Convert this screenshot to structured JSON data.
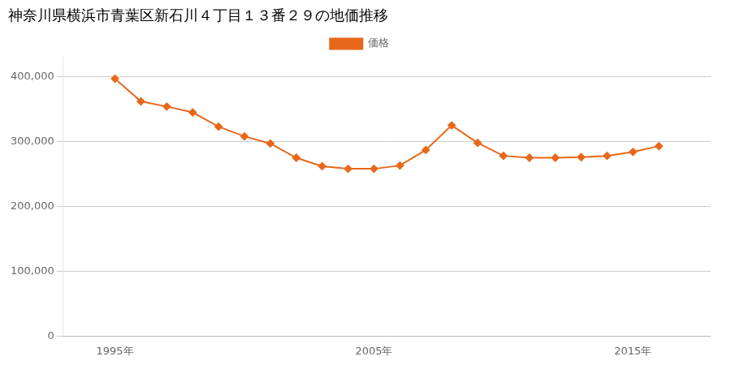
{
  "chart_data": {
    "type": "line",
    "title": "神奈川県横浜市青葉区新石川４丁目１３番２９の地価推移",
    "x": [
      1995,
      1996,
      1997,
      1998,
      1999,
      2000,
      2001,
      2002,
      2003,
      2004,
      2005,
      2006,
      2007,
      2008,
      2009,
      2010,
      2011,
      2012,
      2013,
      2014,
      2015,
      2016
    ],
    "series": [
      {
        "name": "価格",
        "color": "#e8681a",
        "marker": "diamond",
        "line_style": "solid",
        "values": [
          397000,
          362000,
          354000,
          345000,
          323000,
          308000,
          297000,
          275000,
          262000,
          258000,
          258000,
          263000,
          287000,
          325000,
          298000,
          278000,
          275000,
          275000,
          276000,
          278000,
          284000,
          293000
        ]
      }
    ],
    "xlim": [
      1993,
      2018
    ],
    "xticks": [
      {
        "value": 1995,
        "label": "1995年"
      },
      {
        "value": 2005,
        "label": "2005年"
      },
      {
        "value": 2015,
        "label": "2015年"
      }
    ],
    "ylim": [
      0,
      430000
    ],
    "yticks": [
      0,
      {
        "value": 100000,
        "label": "100,000"
      },
      {
        "value": 200000,
        "label": "200,000"
      },
      {
        "value": 300000,
        "label": "300,000"
      },
      {
        "value": 400000,
        "label": "400,000"
      }
    ],
    "grid": true,
    "legend": "top"
  }
}
